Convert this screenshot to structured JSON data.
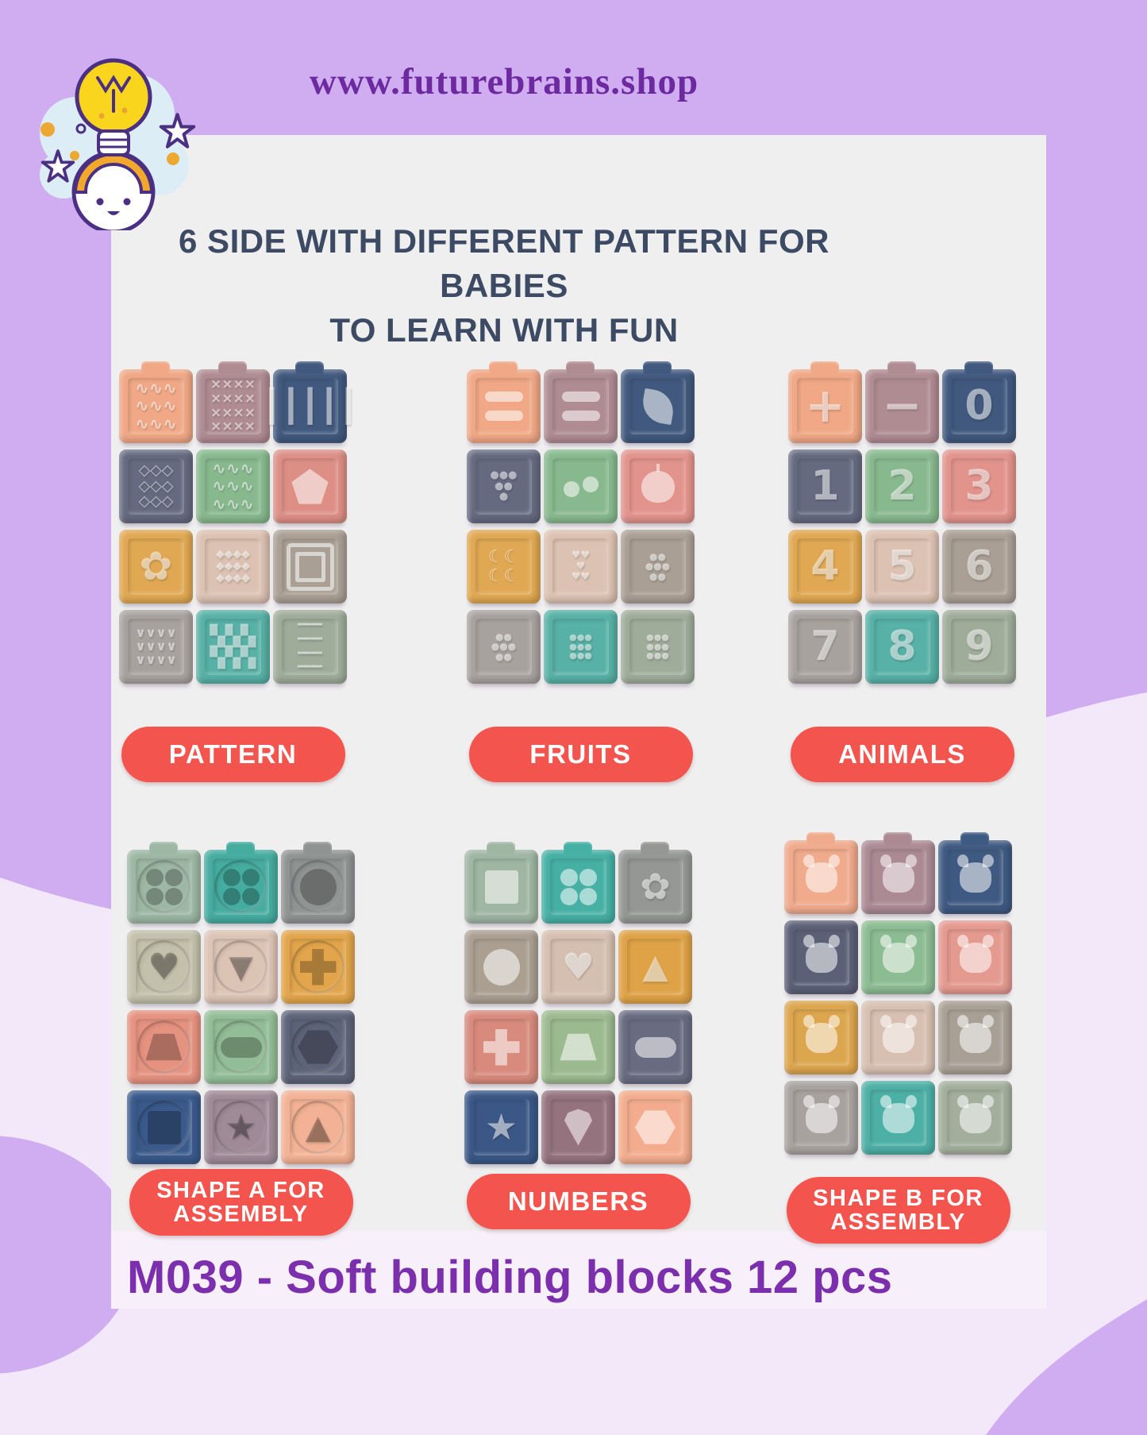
{
  "site": {
    "url": "www.futurebrains.shop"
  },
  "heading": {
    "line1": "6 SIDE WITH DIFFERENT PATTERN FOR BABIES",
    "line2": "TO LEARN WITH FUN"
  },
  "caption": "M039 - Soft building blocks 12 pcs",
  "colors": {
    "bg": "#cfadf0",
    "bg_light": "#f2e8f9",
    "card": "#f0eff0",
    "pill": "#f4544e",
    "pill_text": "#ffffff",
    "heading": "#3d4a63",
    "url": "#6d2aa0",
    "caption": "#7b2fad"
  },
  "logo": {
    "name": "futurebrains-logo",
    "description": "baby head with lightbulb, stars and cloud"
  },
  "groups": [
    {
      "id": "pattern",
      "label_lines": [
        "PATTERN"
      ],
      "tone": "light",
      "blocks": [
        {
          "c": "#f0a886",
          "n": "chevron-waves",
          "t": "g",
          "v": "∿∿∿\n∿∿∿\n∿∿∿",
          "s": 21
        },
        {
          "c": "#af8b92",
          "n": "cross-stitch",
          "t": "g",
          "v": "××××\n××××\n××××\n××××",
          "s": 17
        },
        {
          "c": "#41597e",
          "n": "vertical-ribs",
          "t": "g",
          "v": "┃┃┃┃┃",
          "s": 40
        },
        {
          "c": "#666a80",
          "n": "diamond-lattice",
          "t": "g",
          "v": "◇◇◇\n◇◇◇\n◇◇◇",
          "s": 19
        },
        {
          "c": "#88b98e",
          "n": "waves",
          "t": "g",
          "v": "∿∿∿\n∿∿∿\n∿∿∿",
          "s": 21
        },
        {
          "c": "#dd8f86",
          "n": "pentagon-rings",
          "t": "s",
          "v": "pentagon"
        },
        {
          "c": "#e0a852",
          "n": "pentagon-flower",
          "t": "g",
          "v": "✿",
          "s": 50
        },
        {
          "c": "#dcc2b2",
          "n": "diamond-mesh",
          "t": "g",
          "v": "◆◆◆◆\n◆◆◆◆\n◆◆◆◆",
          "s": 14
        },
        {
          "c": "#a99f94",
          "n": "square-rings",
          "t": "s",
          "v": "squares"
        },
        {
          "c": "#a8a29f",
          "n": "zigzag-ribs",
          "t": "g",
          "v": "∨∨∨∨\n∨∨∨∨\n∨∨∨∨",
          "s": 16
        },
        {
          "c": "#57b1a6",
          "n": "checkerboard",
          "t": "g",
          "v": "▚▚▚\n▚▚▚",
          "s": 25
        },
        {
          "c": "#9fac9a",
          "n": "horizontal-ribs",
          "t": "g",
          "v": "━━━\n━━━\n━━━\n━━━",
          "s": 17
        }
      ]
    },
    {
      "id": "fruits",
      "label_lines": [
        "FRUITS"
      ],
      "tone": "light",
      "blocks": [
        {
          "c": "#f0a886",
          "n": "banana-bars",
          "t": "s",
          "v": "bars2"
        },
        {
          "c": "#af8b92",
          "n": "banana-bars",
          "t": "s",
          "v": "bars2"
        },
        {
          "c": "#41597e",
          "n": "leaf",
          "t": "s",
          "v": "leaf"
        },
        {
          "c": "#666a80",
          "n": "grapes",
          "t": "g",
          "v": "●●●\n●●\n●",
          "s": 13
        },
        {
          "c": "#88b98e",
          "n": "cherries",
          "t": "s",
          "v": "cherries"
        },
        {
          "c": "#e2938c",
          "n": "apple",
          "t": "s",
          "v": "apple"
        },
        {
          "c": "#e0a852",
          "n": "bananas",
          "t": "g",
          "v": "☾☾\n☾☾",
          "s": 22
        },
        {
          "c": "#dcc2b2",
          "n": "strawberries",
          "t": "g",
          "v": "♥♥\n♥\n♥♥",
          "s": 13
        },
        {
          "c": "#a99f94",
          "n": "plums",
          "t": "g",
          "v": "●●\n●●●\n●●",
          "s": 12
        },
        {
          "c": "#a8a29f",
          "n": "apples",
          "t": "g",
          "v": "●●\n●●●\n●●",
          "s": 12
        },
        {
          "c": "#57b1a6",
          "n": "pears",
          "t": "g",
          "v": "●●●\n●●●\n●●●",
          "s": 11
        },
        {
          "c": "#9fac9a",
          "n": "apples",
          "t": "g",
          "v": "●●●\n●●●\n●●●",
          "s": 11
        }
      ]
    },
    {
      "id": "animals",
      "label_lines": [
        "ANIMALS"
      ],
      "tone": "light",
      "blocks": [
        {
          "c": "#f0a886",
          "n": "plus-sign",
          "t": "g",
          "v": "+",
          "s": 60
        },
        {
          "c": "#af8b92",
          "n": "minus-sign",
          "t": "g",
          "v": "−",
          "s": 60
        },
        {
          "c": "#41597e",
          "n": "number-0",
          "t": "g",
          "v": "0",
          "s": 52
        },
        {
          "c": "#666a80",
          "n": "number-1",
          "t": "g",
          "v": "1",
          "s": 52
        },
        {
          "c": "#88b98e",
          "n": "number-2",
          "t": "g",
          "v": "2",
          "s": 52
        },
        {
          "c": "#e2938c",
          "n": "number-3",
          "t": "g",
          "v": "3",
          "s": 52
        },
        {
          "c": "#e0a852",
          "n": "number-4",
          "t": "g",
          "v": "4",
          "s": 52
        },
        {
          "c": "#dcc2b2",
          "n": "number-5",
          "t": "g",
          "v": "5",
          "s": 52
        },
        {
          "c": "#a99f94",
          "n": "number-6",
          "t": "g",
          "v": "6",
          "s": 52
        },
        {
          "c": "#a8a29f",
          "n": "number-7",
          "t": "g",
          "v": "7",
          "s": 52
        },
        {
          "c": "#57b1a6",
          "n": "number-8",
          "t": "g",
          "v": "8",
          "s": 52
        },
        {
          "c": "#9fac9a",
          "n": "number-9",
          "t": "g",
          "v": "9",
          "s": 52
        }
      ]
    },
    {
      "id": "shape-a",
      "label_lines": [
        "SHAPE A FOR",
        "ASSEMBLY"
      ],
      "tone": "dark",
      "blocks": [
        {
          "c": "#9db7a4",
          "n": "clover-cutout",
          "t": "s",
          "v": "clover",
          "w": 1
        },
        {
          "c": "#45aca0",
          "n": "clover-cutout",
          "t": "s",
          "v": "clover",
          "w": 1
        },
        {
          "c": "#8f9392",
          "n": "circle-cutout",
          "t": "s",
          "v": "circle",
          "w": 1
        },
        {
          "c": "#c3c0ab",
          "n": "heart-cutout",
          "t": "g",
          "v": "♥",
          "s": 46,
          "w": 1
        },
        {
          "c": "#dcc4b5",
          "n": "triangle-cutout",
          "t": "g",
          "v": "▼",
          "s": 40,
          "w": 1
        },
        {
          "c": "#e2a54b",
          "n": "cross-cutout",
          "t": "s",
          "v": "cross",
          "w": 1
        },
        {
          "c": "#e69280",
          "n": "trapezoid-cutout",
          "t": "s",
          "v": "trapezoid",
          "w": 1
        },
        {
          "c": "#93bd96",
          "n": "oval-cutout",
          "t": "s",
          "v": "bar",
          "w": 1
        },
        {
          "c": "#5d6379",
          "n": "hexagon-cutout",
          "t": "s",
          "v": "hexagon",
          "w": 1
        },
        {
          "c": "#3a5a8c",
          "n": "square-cutout",
          "t": "s",
          "v": "square",
          "w": 1
        },
        {
          "c": "#9f8a97",
          "n": "star-cutout",
          "t": "g",
          "v": "★",
          "s": 46,
          "w": 1
        },
        {
          "c": "#f3b295",
          "n": "cone-cutout",
          "t": "g",
          "v": "▲",
          "s": 42,
          "w": 1
        }
      ]
    },
    {
      "id": "numbers",
      "label_lines": [
        "NUMBERS"
      ],
      "tone": "light",
      "blocks": [
        {
          "c": "#9fb6a3",
          "n": "square-stud",
          "t": "s",
          "v": "square"
        },
        {
          "c": "#46b0a5",
          "n": "clover-stud",
          "t": "s",
          "v": "clover"
        },
        {
          "c": "#959794",
          "n": "flower-stud",
          "t": "g",
          "v": "✿",
          "s": 46
        },
        {
          "c": "#ab9f92",
          "n": "circle-stud",
          "t": "s",
          "v": "circle"
        },
        {
          "c": "#d5bfb0",
          "n": "heart-stud",
          "t": "g",
          "v": "♥",
          "s": 46
        },
        {
          "c": "#dfa246",
          "n": "triangle-stud",
          "t": "g",
          "v": "▲",
          "s": 42
        },
        {
          "c": "#d88b7d",
          "n": "cross-stud",
          "t": "s",
          "v": "cross"
        },
        {
          "c": "#9cba90",
          "n": "trapezoid-stud",
          "t": "s",
          "v": "trapezoid"
        },
        {
          "c": "#696c81",
          "n": "bar-stud",
          "t": "s",
          "v": "bar"
        },
        {
          "c": "#3a5786",
          "n": "star-stud",
          "t": "g",
          "v": "★",
          "s": 46
        },
        {
          "c": "#94727e",
          "n": "fan-stud",
          "t": "s",
          "v": "drop"
        },
        {
          "c": "#f3ad8e",
          "n": "hexagon-stud",
          "t": "s",
          "v": "hexagon"
        }
      ]
    },
    {
      "id": "shape-b",
      "label_lines": [
        "SHAPE B FOR",
        "ASSEMBLY"
      ],
      "tone": "light",
      "blocks": [
        {
          "c": "#f0aa8c",
          "n": "puppy",
          "t": "s",
          "v": "animal"
        },
        {
          "c": "#ab8a94",
          "n": "seahorses",
          "t": "s",
          "v": "animal"
        },
        {
          "c": "#3f5a82",
          "n": "fish",
          "t": "s",
          "v": "animal"
        },
        {
          "c": "#5c6077",
          "n": "monkey",
          "t": "s",
          "v": "animal"
        },
        {
          "c": "#8cbc92",
          "n": "cow",
          "t": "s",
          "v": "animal"
        },
        {
          "c": "#e59a90",
          "n": "pig",
          "t": "s",
          "v": "animal"
        },
        {
          "c": "#dca64e",
          "n": "crab",
          "t": "s",
          "v": "animal"
        },
        {
          "c": "#d7c0b1",
          "n": "lion",
          "t": "s",
          "v": "animal"
        },
        {
          "c": "#a9a095",
          "n": "bear",
          "t": "s",
          "v": "animal"
        },
        {
          "c": "#a8a29f",
          "n": "rabbit",
          "t": "s",
          "v": "animal"
        },
        {
          "c": "#4db0a6",
          "n": "bunny",
          "t": "s",
          "v": "animal"
        },
        {
          "c": "#a3af9c",
          "n": "teddy-bear",
          "t": "s",
          "v": "animal"
        }
      ]
    }
  ]
}
